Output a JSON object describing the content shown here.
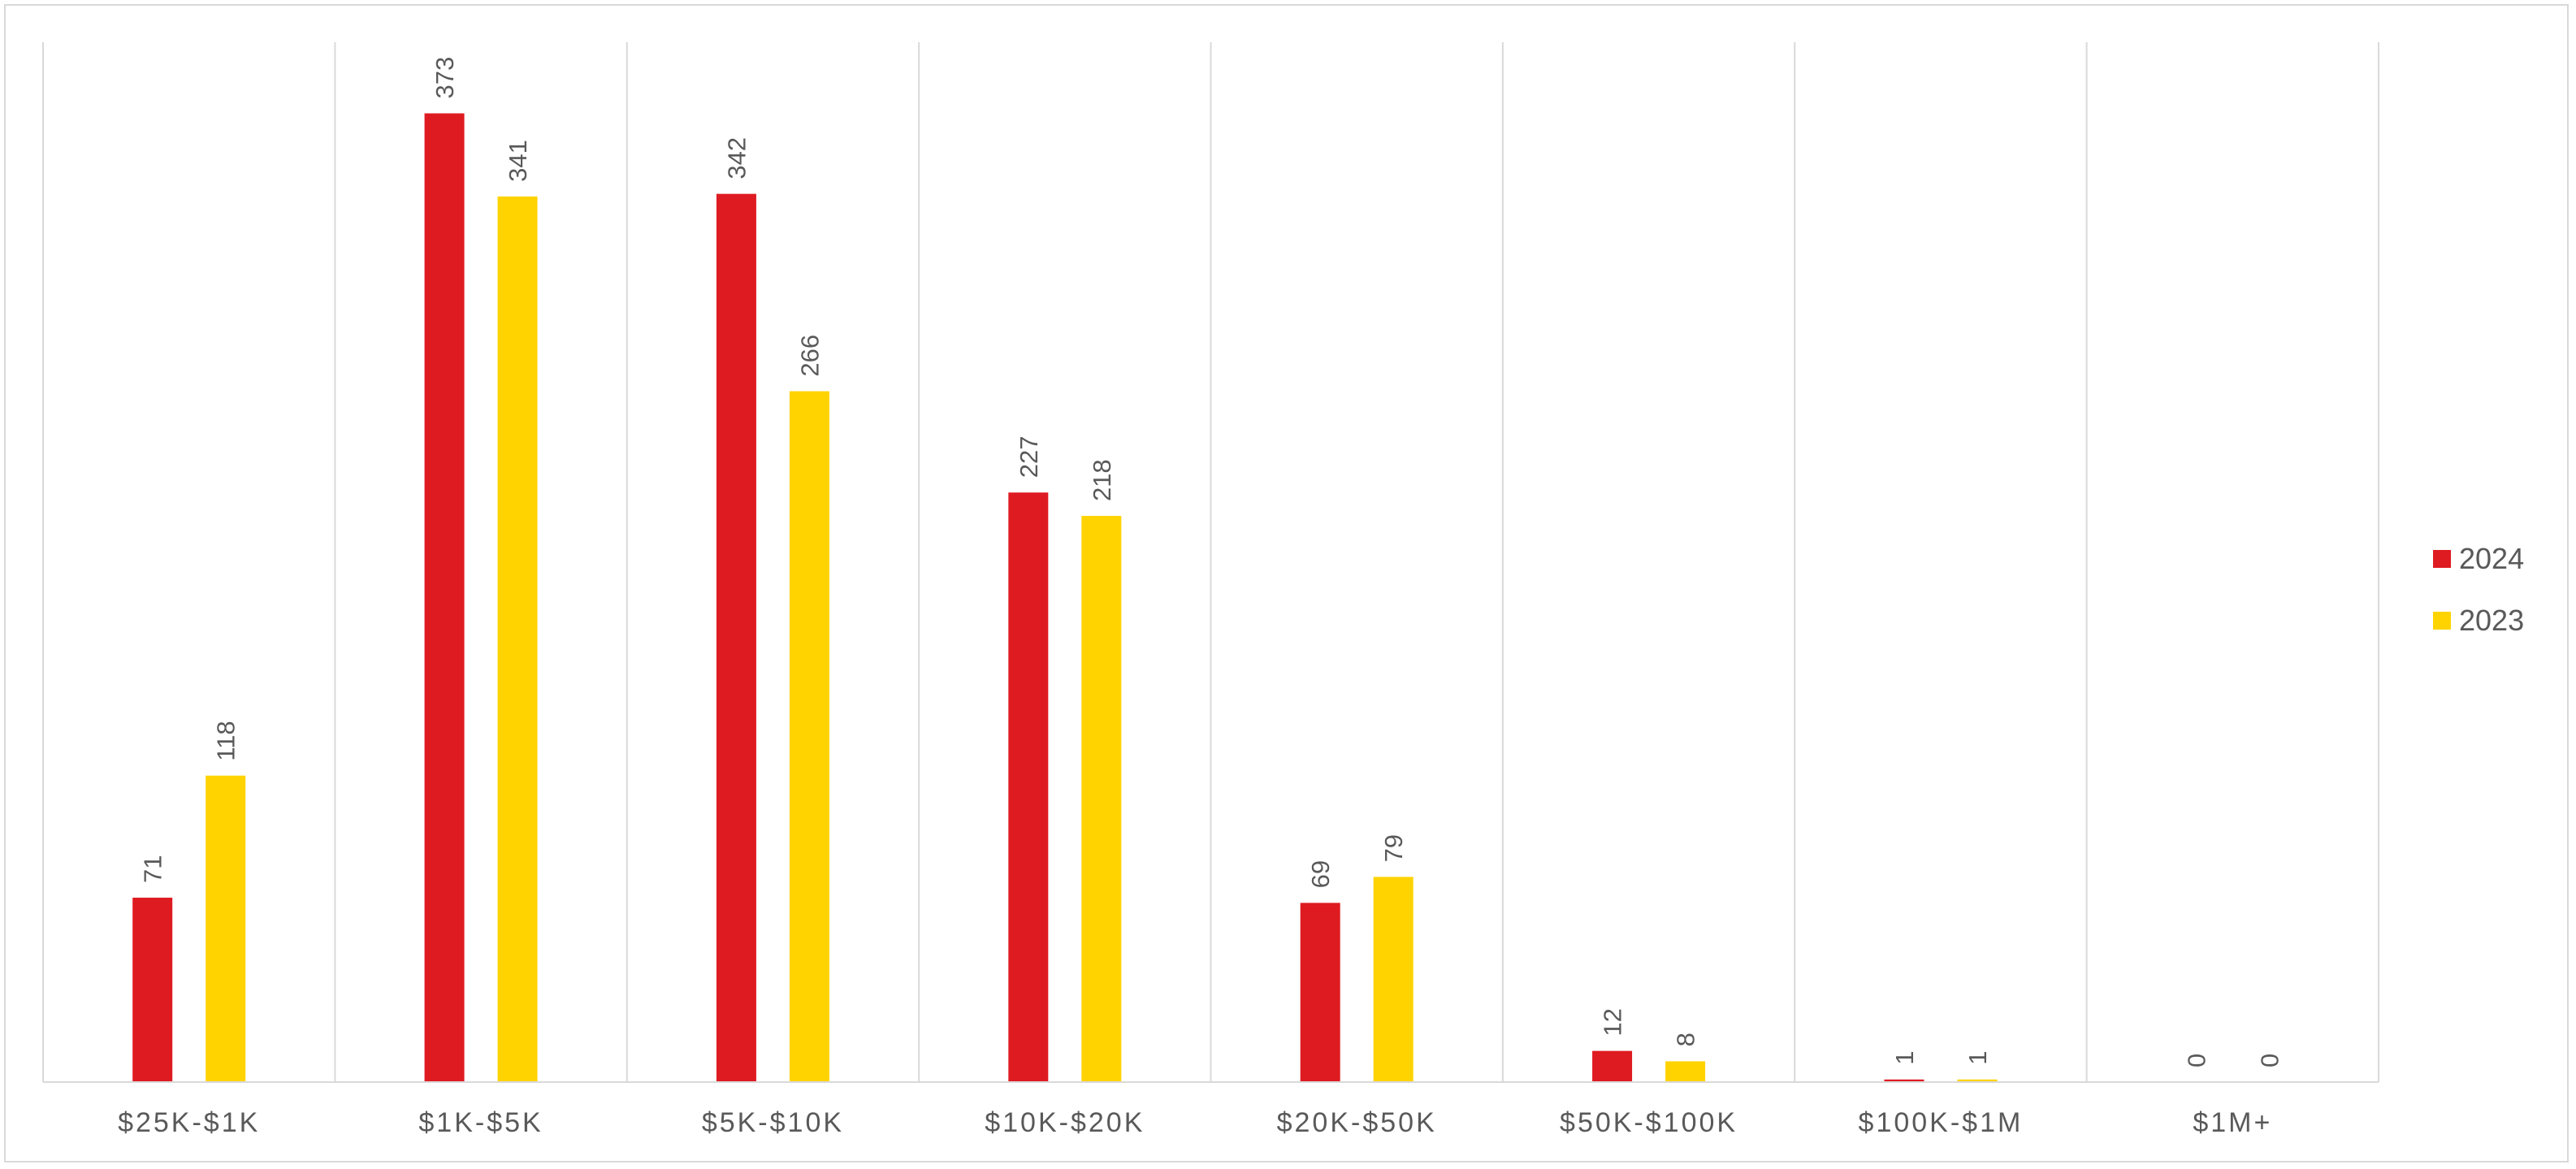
{
  "chart_data": {
    "type": "bar",
    "title": "",
    "xlabel": "",
    "ylabel": "",
    "categories": [
      "$25K-$1K",
      "$1K-$5K",
      "$5K-$10K",
      "$10K-$20K",
      "$20K-$50K",
      "$50K-$100K",
      "$100K-$1M",
      "$1M+"
    ],
    "series": [
      {
        "name": "2024",
        "color": "#df1b22",
        "values": [
          71,
          373,
          342,
          227,
          69,
          12,
          1,
          0
        ]
      },
      {
        "name": "2023",
        "color": "#ffd300",
        "values": [
          118,
          341,
          266,
          218,
          79,
          8,
          1,
          0
        ]
      }
    ],
    "ylim": [
      0,
      400
    ],
    "grid": "vertical category separators",
    "legend_position": "right"
  }
}
